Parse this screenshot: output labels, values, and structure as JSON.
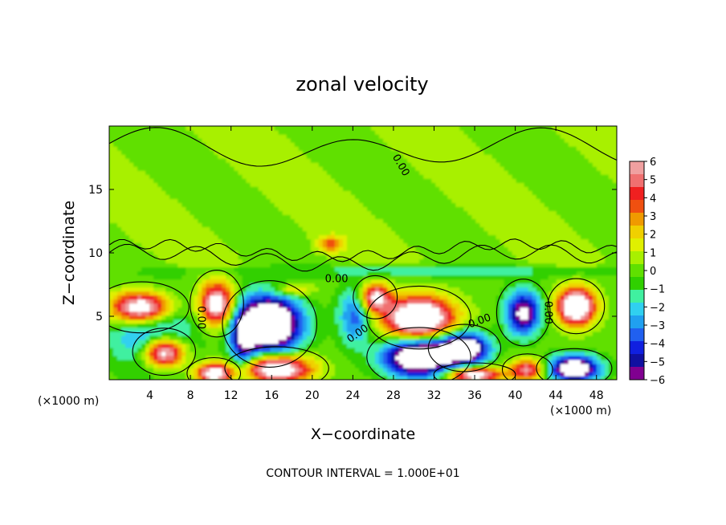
{
  "chart_data": {
    "type": "heatmap",
    "title": "zonal velocity",
    "xlabel": "X−coordinate",
    "ylabel": "Z−coordinate",
    "x_unit_left": "(×1000 m)",
    "x_unit_right": "(×1000 m)",
    "footer": "CONTOUR INTERVAL = 1.000E+01",
    "xlim": [
      0,
      50
    ],
    "ylim": [
      0,
      20
    ],
    "x_ticks": [
      4,
      8,
      12,
      16,
      20,
      24,
      28,
      32,
      36,
      40,
      44,
      48
    ],
    "x_tick_labels": [
      "4",
      "8",
      "12",
      "16",
      "20",
      "24",
      "28",
      "32",
      "36",
      "40",
      "44",
      "48"
    ],
    "y_ticks": [
      5,
      10,
      15
    ],
    "y_tick_labels": [
      "5",
      "10",
      "15"
    ],
    "colorbar": {
      "range": [
        -6,
        6
      ],
      "tick_labels": [
        "6",
        "5",
        "4",
        "3",
        "2",
        "1",
        "0",
        "−1",
        "−2",
        "−3",
        "−4",
        "−5",
        "−6"
      ],
      "colors": [
        "#f0a0a0",
        "#f07070",
        "#f02020",
        "#f05010",
        "#f09a00",
        "#f0d000",
        "#e0f000",
        "#a8f000",
        "#60e000",
        "#30d000",
        "#40f0a0",
        "#30d0f0",
        "#20a0f0",
        "#2060f0",
        "#1020e0",
        "#1010a0",
        "#800090"
      ]
    },
    "contour_labels": [
      {
        "text": "0.00",
        "x": 22.4,
        "z": 7.9,
        "rotate": 0
      },
      {
        "text": "0.00",
        "x": 9.0,
        "z": 4.9,
        "rotate": 90
      },
      {
        "text": "0.00",
        "x": 24.5,
        "z": 3.6,
        "rotate": -35
      },
      {
        "text": "0.00",
        "x": 36.5,
        "z": 4.6,
        "rotate": -20
      },
      {
        "text": "0.00",
        "x": 43.2,
        "z": 5.3,
        "rotate": 90
      },
      {
        "text": "0.00",
        "x": 28.7,
        "z": 16.9,
        "rotate": 60
      }
    ],
    "features": [
      {
        "sign": "positive",
        "x": 3.2,
        "z": 5.7,
        "rx": 3.0,
        "rz": 1.3,
        "amp": 10.0
      },
      {
        "sign": "positive",
        "x": 5.4,
        "z": 2.2,
        "rx": 2.0,
        "rz": 1.2,
        "amp": 9.0
      },
      {
        "sign": "positive",
        "x": 10.6,
        "z": 6.0,
        "rx": 1.7,
        "rz": 1.7,
        "amp": 8.0
      },
      {
        "sign": "positive",
        "x": 10.3,
        "z": 0.5,
        "rx": 1.7,
        "rz": 0.8,
        "amp": 8.0
      },
      {
        "sign": "negative",
        "x": 15.8,
        "z": 4.4,
        "rx": 3.0,
        "rz": 2.2,
        "amp": 11.0
      },
      {
        "sign": "positive",
        "x": 16.5,
        "z": 0.9,
        "rx": 3.3,
        "rz": 1.1,
        "amp": 9.0
      },
      {
        "sign": "positive",
        "x": 26.2,
        "z": 6.5,
        "rx": 1.4,
        "rz": 1.1,
        "amp": 7.0
      },
      {
        "sign": "positive",
        "x": 30.5,
        "z": 4.9,
        "rx": 3.3,
        "rz": 1.6,
        "amp": 10.5
      },
      {
        "sign": "negative",
        "x": 30.5,
        "z": 1.8,
        "rx": 3.3,
        "rz": 1.5,
        "amp": 10.0
      },
      {
        "sign": "negative",
        "x": 35.0,
        "z": 2.5,
        "rx": 2.3,
        "rz": 1.2,
        "amp": 9.0
      },
      {
        "sign": "positive",
        "x": 36.0,
        "z": 0.4,
        "rx": 2.6,
        "rz": 0.6,
        "amp": 8.0
      },
      {
        "sign": "negative",
        "x": 40.8,
        "z": 5.3,
        "rx": 1.7,
        "rz": 1.7,
        "amp": 7.0
      },
      {
        "sign": "positive",
        "x": 41.2,
        "z": 0.8,
        "rx": 1.6,
        "rz": 0.8,
        "amp": 6.0
      },
      {
        "sign": "positive",
        "x": 46.0,
        "z": 5.8,
        "rx": 1.8,
        "rz": 1.4,
        "amp": 10.0
      },
      {
        "sign": "negative",
        "x": 45.8,
        "z": 0.9,
        "rx": 2.4,
        "rz": 1.0,
        "amp": 9.0
      },
      {
        "sign": "negative",
        "x": 4.2,
        "z": 4.0,
        "rx": 4.0,
        "rz": 3.0,
        "amp": 4.0
      },
      {
        "sign": "negative",
        "x": 13.2,
        "z": 3.0,
        "rx": 1.2,
        "rz": 2.5,
        "amp": 4.5
      },
      {
        "sign": "negative",
        "x": 24.2,
        "z": 5.0,
        "rx": 1.6,
        "rz": 2.2,
        "amp": 4.0
      },
      {
        "sign": "positive",
        "x": 21.8,
        "z": 10.7,
        "rx": 1.2,
        "rz": 0.6,
        "amp": 3.5
      },
      {
        "sign": "positive",
        "x": 18.0,
        "z": 7.1,
        "rx": 2.0,
        "rz": 0.5,
        "amp": 3.0
      },
      {
        "sign": "negative",
        "x": 31.5,
        "z": 8.6,
        "rx": 18.0,
        "rz": 0.5,
        "amp": 1.5
      }
    ]
  }
}
